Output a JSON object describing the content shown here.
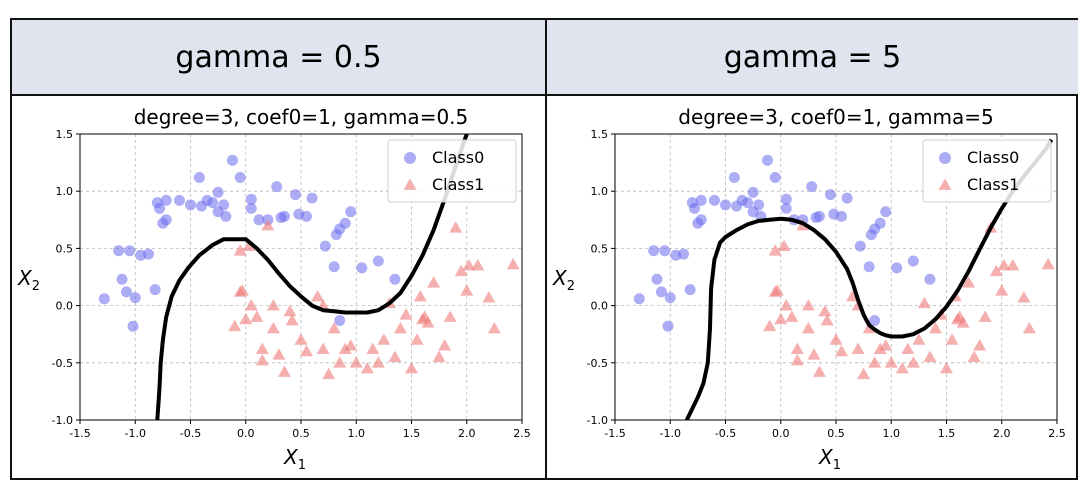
{
  "columns": [
    {
      "header": "gamma = 0.5"
    },
    {
      "header": "gamma = 5"
    }
  ],
  "chart_data": [
    {
      "type": "scatter",
      "title": "degree=3, coef0=1, gamma=0.5",
      "xlabel": "X",
      "xlabel_sub": "1",
      "ylabel": "X",
      "ylabel_sub": "2",
      "xlim": [
        -1.5,
        2.5
      ],
      "ylim": [
        -1.0,
        1.5
      ],
      "xticks": [
        "-1.5",
        "-1.0",
        "-0.5",
        "0.0",
        "0.5",
        "1.0",
        "1.5",
        "2.0",
        "2.5"
      ],
      "yticks": [
        "-1.0",
        "-0.5",
        "0.0",
        "0.5",
        "1.0",
        "1.5"
      ],
      "grid": true,
      "legend_position": "top-right",
      "series": [
        {
          "name": "Class0",
          "marker": "circle",
          "color": "#6a6aef",
          "x": [
            -1.28,
            -1.12,
            -1.0,
            -1.08,
            -1.15,
            -1.05,
            -0.95,
            -0.88,
            -0.82,
            -0.8,
            -0.78,
            -0.72,
            -0.75,
            -0.72,
            -0.5,
            -0.35,
            -0.4,
            -0.3,
            -0.25,
            -0.18,
            -0.12,
            -0.05,
            0.05,
            0.12,
            0.2,
            0.28,
            0.32,
            0.35,
            0.45,
            0.48,
            0.55,
            0.6,
            0.72,
            0.8,
            0.82,
            0.85,
            0.9,
            0.95,
            1.05,
            1.2,
            1.35,
            -1.02,
            -0.42,
            -0.2,
            0.85,
            -0.6,
            -0.25,
            0.05
          ],
          "y": [
            0.06,
            0.23,
            0.07,
            0.12,
            0.48,
            0.48,
            0.44,
            0.45,
            0.14,
            0.9,
            0.85,
            0.75,
            0.72,
            0.92,
            0.88,
            0.92,
            0.87,
            0.9,
            0.82,
            0.78,
            1.27,
            1.12,
            0.93,
            0.75,
            0.75,
            1.04,
            0.77,
            0.78,
            0.97,
            0.8,
            0.78,
            0.94,
            0.52,
            0.34,
            0.62,
            0.67,
            0.72,
            0.82,
            0.33,
            0.39,
            0.23,
            -0.18,
            1.12,
            0.88,
            -0.13,
            0.92,
            0.99,
            0.85
          ]
        },
        {
          "name": "Class1",
          "marker": "triangle",
          "color": "#ef7a7a",
          "x": [
            -0.05,
            -0.05,
            -0.1,
            0.05,
            0.1,
            0.15,
            0.15,
            0.2,
            0.25,
            0.25,
            0.3,
            0.35,
            0.4,
            0.42,
            0.5,
            0.55,
            0.65,
            0.7,
            0.7,
            0.75,
            0.8,
            0.85,
            0.9,
            0.95,
            1.0,
            1.1,
            1.15,
            1.2,
            1.25,
            1.3,
            1.35,
            1.4,
            1.45,
            1.5,
            1.55,
            1.58,
            1.6,
            1.62,
            1.65,
            1.7,
            1.75,
            1.8,
            1.85,
            1.9,
            1.95,
            2.0,
            2.02,
            2.1,
            2.2,
            2.25,
            2.42,
            0.03,
            0.0,
            -0.03
          ],
          "y": [
            0.48,
            0.12,
            -0.18,
            0.0,
            -0.1,
            -0.38,
            -0.48,
            0.7,
            0.0,
            -0.2,
            -0.43,
            -0.58,
            -0.05,
            -0.13,
            -0.3,
            -0.4,
            0.08,
            0.0,
            -0.38,
            -0.6,
            -0.2,
            -0.5,
            -0.38,
            -0.35,
            -0.5,
            -0.55,
            -0.38,
            -0.5,
            -0.3,
            0.02,
            -0.45,
            -0.2,
            -0.08,
            -0.55,
            -0.3,
            0.08,
            -0.12,
            -0.1,
            -0.15,
            0.2,
            -0.45,
            -0.35,
            -0.1,
            0.68,
            0.3,
            0.13,
            0.35,
            0.35,
            0.07,
            -0.2,
            0.36,
            0.52,
            -0.12,
            0.13
          ]
        }
      ],
      "boundary": {
        "color": "#000000",
        "x": [
          -0.8,
          -0.79,
          -0.78,
          -0.77,
          -0.75,
          -0.72,
          -0.67,
          -0.6,
          -0.52,
          -0.42,
          -0.3,
          -0.2,
          -0.1,
          0.0,
          0.1,
          0.2,
          0.3,
          0.4,
          0.5,
          0.6,
          0.7,
          0.8,
          0.9,
          1.0,
          1.1,
          1.2,
          1.3,
          1.4,
          1.5,
          1.6,
          1.7,
          1.8,
          1.85,
          1.9,
          1.95,
          2.0
        ],
        "y": [
          -1.0,
          -0.85,
          -0.7,
          -0.5,
          -0.3,
          -0.1,
          0.08,
          0.22,
          0.33,
          0.44,
          0.53,
          0.58,
          0.58,
          0.58,
          0.5,
          0.4,
          0.28,
          0.17,
          0.08,
          0.0,
          -0.04,
          -0.05,
          -0.06,
          -0.06,
          -0.06,
          -0.04,
          0.02,
          0.11,
          0.26,
          0.44,
          0.66,
          0.93,
          1.08,
          1.22,
          1.36,
          1.5
        ]
      }
    },
    {
      "type": "scatter",
      "title": "degree=3, coef0=1, gamma=5",
      "xlabel": "X",
      "xlabel_sub": "1",
      "ylabel": "X",
      "ylabel_sub": "2",
      "xlim": [
        -1.5,
        2.5
      ],
      "ylim": [
        -1.0,
        1.5
      ],
      "xticks": [
        "-1.5",
        "-1.0",
        "-0.5",
        "0.0",
        "0.5",
        "1.0",
        "1.5",
        "2.0",
        "2.5"
      ],
      "yticks": [
        "-1.0",
        "-0.5",
        "0.0",
        "0.5",
        "1.0",
        "1.5"
      ],
      "grid": true,
      "legend_position": "top-right",
      "series": [
        {
          "name": "Class0",
          "marker": "circle",
          "color": "#6a6aef",
          "x": [
            -1.28,
            -1.12,
            -1.0,
            -1.08,
            -1.15,
            -1.05,
            -0.95,
            -0.88,
            -0.82,
            -0.8,
            -0.78,
            -0.72,
            -0.75,
            -0.72,
            -0.5,
            -0.35,
            -0.4,
            -0.3,
            -0.25,
            -0.18,
            -0.12,
            -0.05,
            0.05,
            0.12,
            0.2,
            0.28,
            0.32,
            0.35,
            0.45,
            0.48,
            0.55,
            0.6,
            0.72,
            0.8,
            0.82,
            0.85,
            0.9,
            0.95,
            1.05,
            1.2,
            1.35,
            -1.02,
            -0.42,
            -0.2,
            0.85,
            -0.6,
            -0.25,
            0.05
          ],
          "y": [
            0.06,
            0.23,
            0.07,
            0.12,
            0.48,
            0.48,
            0.44,
            0.45,
            0.14,
            0.9,
            0.85,
            0.75,
            0.72,
            0.92,
            0.88,
            0.92,
            0.87,
            0.9,
            0.82,
            0.78,
            1.27,
            1.12,
            0.93,
            0.75,
            0.75,
            1.04,
            0.77,
            0.78,
            0.97,
            0.8,
            0.78,
            0.94,
            0.52,
            0.34,
            0.62,
            0.67,
            0.72,
            0.82,
            0.33,
            0.39,
            0.23,
            -0.18,
            1.12,
            0.88,
            -0.13,
            0.92,
            0.99,
            0.85
          ]
        },
        {
          "name": "Class1",
          "marker": "triangle",
          "color": "#ef7a7a",
          "x": [
            -0.05,
            -0.05,
            -0.1,
            0.05,
            0.1,
            0.15,
            0.15,
            0.2,
            0.25,
            0.25,
            0.3,
            0.35,
            0.4,
            0.42,
            0.5,
            0.55,
            0.65,
            0.7,
            0.7,
            0.75,
            0.8,
            0.85,
            0.9,
            0.95,
            1.0,
            1.1,
            1.15,
            1.2,
            1.25,
            1.3,
            1.35,
            1.4,
            1.45,
            1.5,
            1.55,
            1.58,
            1.6,
            1.62,
            1.65,
            1.7,
            1.75,
            1.8,
            1.85,
            1.9,
            1.95,
            2.0,
            2.02,
            2.1,
            2.2,
            2.25,
            2.42,
            0.03,
            0.0,
            -0.03
          ],
          "y": [
            0.48,
            0.12,
            -0.18,
            0.0,
            -0.1,
            -0.38,
            -0.48,
            0.7,
            0.0,
            -0.2,
            -0.43,
            -0.58,
            -0.05,
            -0.13,
            -0.3,
            -0.4,
            0.08,
            0.0,
            -0.38,
            -0.6,
            -0.2,
            -0.5,
            -0.38,
            -0.35,
            -0.5,
            -0.55,
            -0.38,
            -0.5,
            -0.3,
            0.02,
            -0.45,
            -0.2,
            -0.08,
            -0.55,
            -0.3,
            0.08,
            -0.12,
            -0.1,
            -0.15,
            0.2,
            -0.45,
            -0.35,
            -0.1,
            0.68,
            0.3,
            0.13,
            0.35,
            0.35,
            0.07,
            -0.2,
            0.36,
            0.52,
            -0.12,
            0.13
          ]
        }
      ],
      "boundary": {
        "color": "#000000",
        "x": [
          -0.85,
          -0.8,
          -0.75,
          -0.7,
          -0.66,
          -0.64,
          -0.63,
          -0.6,
          -0.55,
          -0.5,
          -0.4,
          -0.3,
          -0.2,
          -0.1,
          0.0,
          0.1,
          0.2,
          0.3,
          0.4,
          0.5,
          0.6,
          0.65,
          0.7,
          0.75,
          0.8,
          0.85,
          0.9,
          0.95,
          1.0,
          1.05,
          1.1,
          1.2,
          1.3,
          1.4,
          1.5,
          1.6,
          1.7,
          1.8,
          1.9,
          2.0,
          2.1,
          2.2,
          2.3,
          2.4,
          2.45
        ],
        "y": [
          -1.0,
          -0.9,
          -0.8,
          -0.68,
          -0.5,
          -0.2,
          0.15,
          0.4,
          0.55,
          0.6,
          0.66,
          0.71,
          0.74,
          0.75,
          0.76,
          0.75,
          0.72,
          0.66,
          0.58,
          0.47,
          0.32,
          0.2,
          0.05,
          -0.08,
          -0.17,
          -0.21,
          -0.24,
          -0.26,
          -0.27,
          -0.27,
          -0.27,
          -0.25,
          -0.2,
          -0.12,
          -0.01,
          0.13,
          0.3,
          0.49,
          0.68,
          0.85,
          1.0,
          1.13,
          1.25,
          1.37,
          1.45
        ]
      }
    }
  ]
}
